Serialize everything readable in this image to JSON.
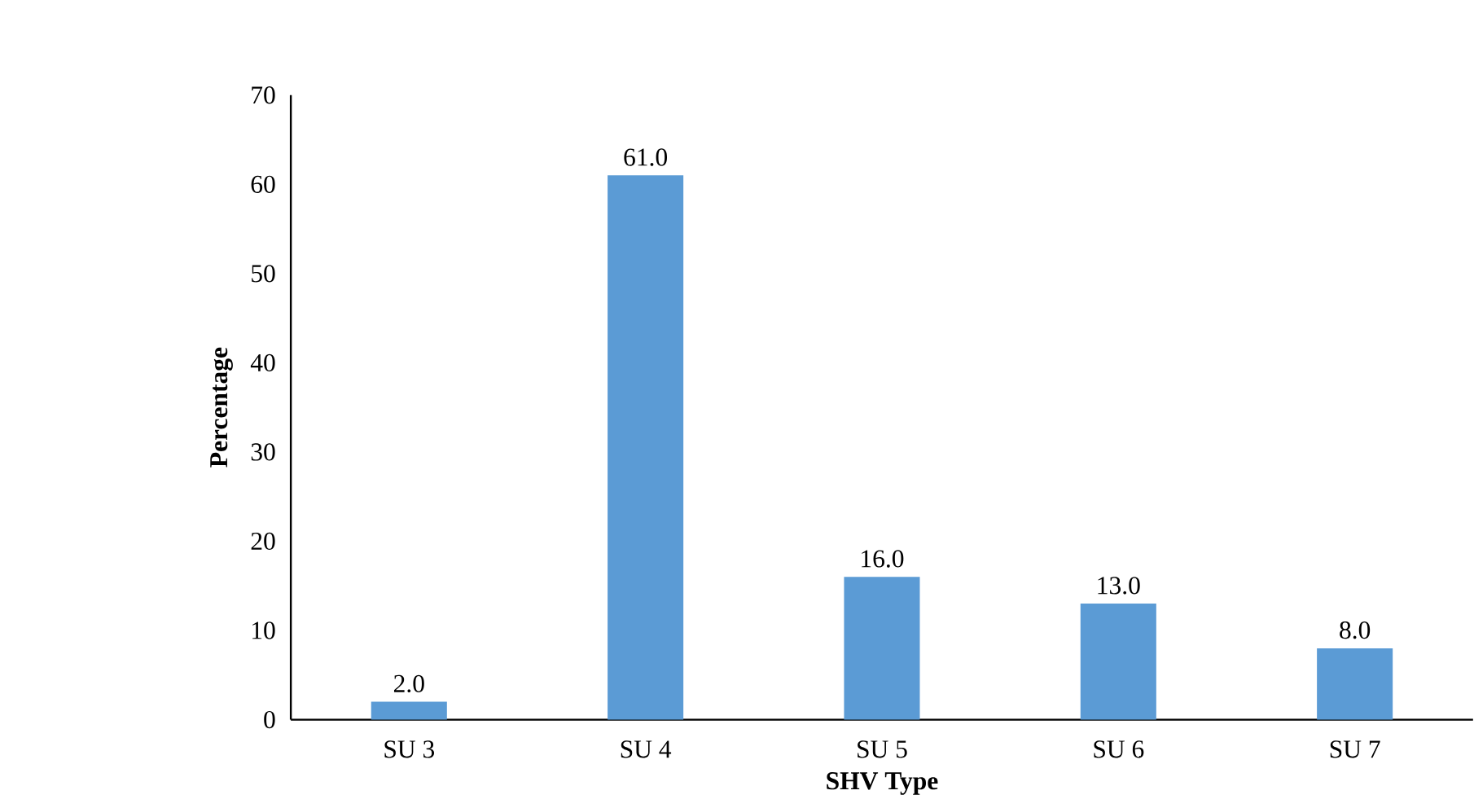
{
  "chart_data": {
    "type": "bar",
    "xlabel": "SHV Type",
    "ylabel": "Percentage",
    "categories": [
      "SU 3",
      "SU 4",
      "SU 5",
      "SU 6",
      "SU 7"
    ],
    "values": [
      2.0,
      61.0,
      16.0,
      13.0,
      8.0
    ],
    "value_labels": [
      "2.0",
      "61.0",
      "16.0",
      "13.0",
      "8.0"
    ],
    "color": "#5b9bd5",
    "ylim": [
      0,
      70
    ],
    "yticks": [
      0,
      10,
      20,
      30,
      40,
      50,
      60,
      70
    ],
    "grid": false
  }
}
